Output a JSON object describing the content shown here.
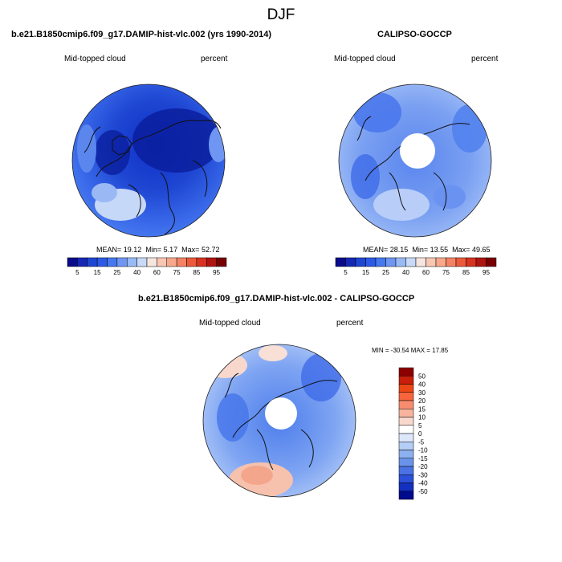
{
  "figure_title": "DJF",
  "panels": [
    {
      "title": "b.e21.B1850cmip6.f09_g17.DAMIP-hist-vlc.002 (yrs 1990-2014)",
      "left_label": "Mid-topped cloud",
      "right_label": "percent",
      "stats": {
        "mean_label": "MEAN=",
        "mean": "19.12",
        "min_label": "Min=",
        "min": "5.17",
        "max_label": "Max=",
        "max": "52.72"
      },
      "colorbar": {
        "colors": [
          "#0a0a8c",
          "#1428b4",
          "#1e46d2",
          "#2c5ae6",
          "#4678f0",
          "#6e96f2",
          "#9abaf6",
          "#c8daf8",
          "#f6e6e0",
          "#f8c8b4",
          "#f8a88c",
          "#f48264",
          "#ec5a3c",
          "#d83220",
          "#b01410",
          "#780000"
        ],
        "tick_labels": [
          "5",
          "15",
          "25",
          "40",
          "60",
          "75",
          "85",
          "95"
        ]
      }
    },
    {
      "title": "CALIPSO-GOCCP",
      "left_label": "Mid-topped cloud",
      "right_label": "percent",
      "stats": {
        "mean_label": "MEAN=",
        "mean": "28.15",
        "min_label": "Min=",
        "min": "13.55",
        "max_label": "Max=",
        "max": "49.65"
      },
      "colorbar": {
        "colors": [
          "#0a0a8c",
          "#1428b4",
          "#1e46d2",
          "#2c5ae6",
          "#4678f0",
          "#6e96f2",
          "#9abaf6",
          "#c8daf8",
          "#f6e6e0",
          "#f8c8b4",
          "#f8a88c",
          "#f48264",
          "#ec5a3c",
          "#d83220",
          "#b01410",
          "#780000"
        ],
        "tick_labels": [
          "5",
          "15",
          "25",
          "40",
          "60",
          "75",
          "85",
          "95"
        ]
      }
    },
    {
      "title": "b.e21.B1850cmip6.f09_g17.DAMIP-hist-vlc.002 - CALIPSO-GOCCP",
      "left_label": "Mid-topped cloud",
      "right_label": "percent",
      "stats_line": "MIN = -30.54  MAX =  17.85",
      "colorbar": {
        "colors": [
          "#8c0000",
          "#c81e0a",
          "#ec4614",
          "#f8643c",
          "#f88c6e",
          "#f8b49e",
          "#f8d8cc",
          "#ffffff",
          "#dce8fa",
          "#b4cef6",
          "#8cb0f0",
          "#6a92ea",
          "#4a72e4",
          "#2c50d8",
          "#1430c0",
          "#000a8c"
        ],
        "tick_labels": [
          "50",
          "40",
          "30",
          "20",
          "15",
          "10",
          "5",
          "0",
          "-5",
          "-10",
          "-15",
          "-20",
          "-30",
          "-40",
          "-50"
        ]
      }
    }
  ]
}
